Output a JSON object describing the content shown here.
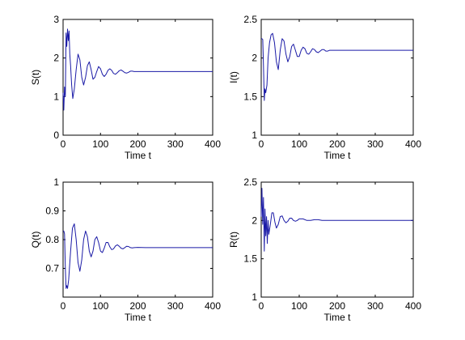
{
  "chart_data": [
    {
      "type": "line",
      "xlabel": "Time t",
      "ylabel": "S(t)",
      "xlim": [
        0,
        400
      ],
      "ylim": [
        0,
        3
      ],
      "xticks": [
        0,
        100,
        200,
        300,
        400
      ],
      "yticks": [
        0,
        1,
        2,
        3
      ],
      "grid": false,
      "series": [
        {
          "color": "#1a1aa6",
          "x": [
            0,
            2,
            4,
            6,
            8,
            10,
            12,
            14,
            16,
            18,
            20,
            23,
            26,
            30,
            35,
            40,
            45,
            50,
            55,
            60,
            65,
            70,
            75,
            80,
            85,
            90,
            95,
            100,
            105,
            110,
            115,
            120,
            125,
            130,
            135,
            140,
            145,
            150,
            155,
            160,
            165,
            170,
            175,
            180,
            185,
            190,
            200,
            220,
            250,
            300,
            350,
            400
          ],
          "y": [
            1.1,
            0.65,
            1.25,
            1.0,
            2.65,
            2.3,
            2.75,
            2.45,
            2.7,
            2.1,
            1.8,
            1.3,
            0.95,
            1.2,
            1.7,
            2.1,
            1.95,
            1.5,
            1.3,
            1.5,
            1.8,
            1.9,
            1.7,
            1.45,
            1.5,
            1.65,
            1.78,
            1.72,
            1.58,
            1.52,
            1.58,
            1.68,
            1.72,
            1.68,
            1.6,
            1.58,
            1.62,
            1.67,
            1.69,
            1.66,
            1.62,
            1.61,
            1.63,
            1.66,
            1.66,
            1.65,
            1.65,
            1.65,
            1.65,
            1.65,
            1.65,
            1.65
          ]
        }
      ]
    },
    {
      "type": "line",
      "xlabel": "Time t",
      "ylabel": "I(t)",
      "xlim": [
        0,
        400
      ],
      "ylim": [
        1,
        2.5
      ],
      "xticks": [
        0,
        100,
        200,
        300,
        400
      ],
      "yticks": [
        1,
        1.5,
        2,
        2.5
      ],
      "grid": false,
      "series": [
        {
          "color": "#1a1aa6",
          "x": [
            0,
            2,
            4,
            6,
            8,
            10,
            12,
            15,
            18,
            22,
            26,
            30,
            35,
            40,
            45,
            50,
            55,
            60,
            65,
            70,
            75,
            80,
            85,
            90,
            95,
            100,
            105,
            110,
            115,
            120,
            125,
            130,
            135,
            140,
            145,
            150,
            155,
            160,
            165,
            170,
            175,
            180,
            190,
            200,
            220,
            250,
            300,
            350,
            400
          ],
          "y": [
            2.25,
            2.25,
            2.24,
            1.9,
            1.45,
            1.6,
            1.55,
            1.65,
            2.0,
            2.2,
            2.3,
            2.32,
            2.2,
            1.95,
            1.85,
            2.1,
            2.25,
            2.22,
            2.05,
            1.95,
            2.02,
            2.15,
            2.18,
            2.1,
            2.02,
            2.02,
            2.1,
            2.14,
            2.12,
            2.06,
            2.05,
            2.08,
            2.12,
            2.11,
            2.08,
            2.07,
            2.09,
            2.11,
            2.11,
            2.09,
            2.09,
            2.1,
            2.1,
            2.1,
            2.1,
            2.1,
            2.1,
            2.1,
            2.1
          ]
        }
      ]
    },
    {
      "type": "line",
      "xlabel": "Time t",
      "ylabel": "Q(t)",
      "xlim": [
        0,
        400
      ],
      "ylim": [
        0.6,
        1
      ],
      "xticks": [
        0,
        100,
        200,
        300,
        400
      ],
      "yticks": [
        0.7,
        0.8,
        0.9,
        1
      ],
      "grid": false,
      "series": [
        {
          "color": "#1a1aa6",
          "x": [
            0,
            2,
            4,
            6,
            8,
            10,
            12,
            15,
            20,
            25,
            30,
            35,
            40,
            45,
            50,
            55,
            60,
            65,
            70,
            75,
            80,
            85,
            90,
            95,
            100,
            105,
            110,
            115,
            120,
            125,
            130,
            135,
            140,
            145,
            150,
            155,
            160,
            165,
            170,
            175,
            180,
            185,
            190,
            200,
            220,
            250,
            300,
            350,
            400
          ],
          "y": [
            0.83,
            0.83,
            0.82,
            0.7,
            0.63,
            0.64,
            0.63,
            0.66,
            0.76,
            0.84,
            0.855,
            0.8,
            0.72,
            0.69,
            0.73,
            0.8,
            0.83,
            0.81,
            0.76,
            0.74,
            0.76,
            0.8,
            0.81,
            0.79,
            0.76,
            0.755,
            0.77,
            0.79,
            0.79,
            0.775,
            0.765,
            0.768,
            0.778,
            0.782,
            0.777,
            0.77,
            0.768,
            0.772,
            0.777,
            0.776,
            0.772,
            0.771,
            0.772,
            0.773,
            0.772,
            0.772,
            0.772,
            0.772,
            0.772
          ]
        }
      ]
    },
    {
      "type": "line",
      "xlabel": "Time t",
      "ylabel": "R(t)",
      "xlim": [
        0,
        400
      ],
      "ylim": [
        1,
        2.5
      ],
      "xticks": [
        0,
        100,
        200,
        300,
        400
      ],
      "yticks": [
        1,
        1.5,
        2,
        2.5
      ],
      "grid": false,
      "series": [
        {
          "color": "#1a1aa6",
          "x": [
            0,
            2,
            4,
            6,
            8,
            10,
            12,
            14,
            16,
            18,
            20,
            24,
            28,
            32,
            36,
            40,
            45,
            50,
            55,
            60,
            65,
            70,
            75,
            80,
            85,
            90,
            95,
            100,
            110,
            120,
            130,
            140,
            150,
            160,
            180,
            200,
            250,
            300,
            350,
            400
          ],
          "y": [
            2.05,
            2.42,
            1.95,
            2.3,
            1.6,
            2.15,
            1.8,
            2.05,
            1.7,
            2.0,
            1.82,
            1.95,
            2.1,
            2.1,
            1.98,
            1.9,
            1.95,
            2.05,
            2.06,
            2.0,
            1.97,
            1.99,
            2.03,
            2.03,
            2.0,
            1.99,
            2.0,
            2.02,
            2.02,
            2.0,
            2.0,
            2.01,
            2.01,
            2.0,
            2.0,
            2.0,
            2.0,
            2.0,
            2.0,
            2.0
          ]
        }
      ]
    }
  ]
}
